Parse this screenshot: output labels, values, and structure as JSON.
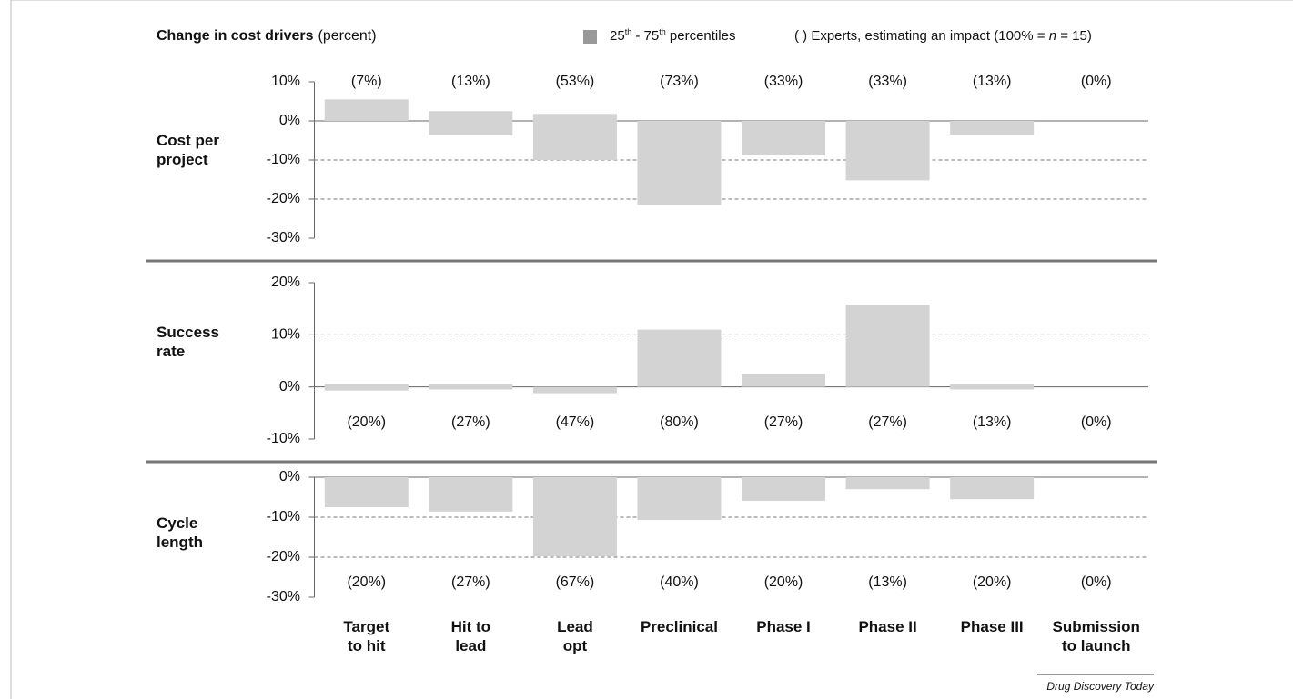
{
  "title": "Change in cost drivers",
  "title_unit": "(percent)",
  "legend": {
    "range": [
      "25",
      "th",
      " - 75",
      "th",
      " percentiles"
    ],
    "experts": [
      "( ) Experts, estimating an impact (100% = ",
      "n",
      " = 15)"
    ]
  },
  "source": "Drug Discovery Today",
  "chart_data": [
    {
      "type": "range-bar",
      "ylabel": "Cost per\nproject",
      "color": "#d3d3d3",
      "ylim": [
        -30,
        10
      ],
      "yticks": [
        {
          "value": -30,
          "label": "-30%"
        },
        {
          "value": -20,
          "label": "-20%"
        },
        {
          "value": -10,
          "label": "-10%"
        },
        {
          "value": 0,
          "label": "0%"
        },
        {
          "value": 10,
          "label": "10%"
        }
      ],
      "low": [
        0,
        -3.7,
        -10,
        -21.5,
        -8.8,
        -15.2,
        -3.5,
        null
      ],
      "high": [
        5.5,
        2.5,
        1.8,
        0,
        0,
        0,
        0,
        null
      ],
      "experts": {
        "values": [
          7,
          13,
          53,
          73,
          33,
          33,
          13,
          0
        ],
        "value_labels": [
          "(7%)",
          "(13%)",
          "(53%)",
          "(73%)",
          "(33%)",
          "(33%)",
          "(13%)",
          "(0%)"
        ]
      }
    },
    {
      "type": "range-bar",
      "ylabel": "Success\nrate",
      "color": "#d3d3d3",
      "ylim": [
        -10,
        20
      ],
      "yticks": [
        {
          "value": -10,
          "label": "-10%"
        },
        {
          "value": 0,
          "label": "0%"
        },
        {
          "value": 10,
          "label": "10%"
        },
        {
          "value": 20,
          "label": "20%"
        }
      ],
      "low": [
        -0.7,
        -0.5,
        -1.2,
        0,
        0,
        0,
        -0.5,
        null
      ],
      "high": [
        0.5,
        0.5,
        0,
        11,
        2.5,
        15.8,
        0.5,
        null
      ],
      "experts": {
        "values": [
          20,
          27,
          47,
          80,
          27,
          27,
          13,
          0
        ],
        "value_labels": [
          "(20%)",
          "(27%)",
          "(47%)",
          "(80%)",
          "(27%)",
          "(27%)",
          "(13%)",
          "(0%)"
        ]
      }
    },
    {
      "type": "range-bar",
      "ylabel": "Cycle\nlength",
      "color": "#d3d3d3",
      "ylim": [
        -30,
        0
      ],
      "yticks": [
        {
          "value": -30,
          "label": "-30%"
        },
        {
          "value": -20,
          "label": "-20%"
        },
        {
          "value": -10,
          "label": "-10%"
        },
        {
          "value": 0,
          "label": "0%"
        }
      ],
      "categories": [
        "Target\nto hit",
        "Hit to\nlead",
        "Lead\nopt",
        "Preclinical",
        "Phase I",
        "Phase II",
        "Phase III",
        "Submission\nto launch"
      ],
      "low": [
        -7.5,
        -8.6,
        -19.8,
        -10.7,
        -5.9,
        -3,
        -5.5,
        null
      ],
      "high": [
        0,
        0,
        0,
        0,
        0,
        0,
        0,
        null
      ],
      "experts": {
        "values": [
          20,
          27,
          67,
          40,
          20,
          13,
          20,
          0
        ],
        "value_labels": [
          "(20%)",
          "(27%)",
          "(67%)",
          "(40%)",
          "(20%)",
          "(13%)",
          "(20%)",
          "(0%)"
        ]
      }
    }
  ]
}
